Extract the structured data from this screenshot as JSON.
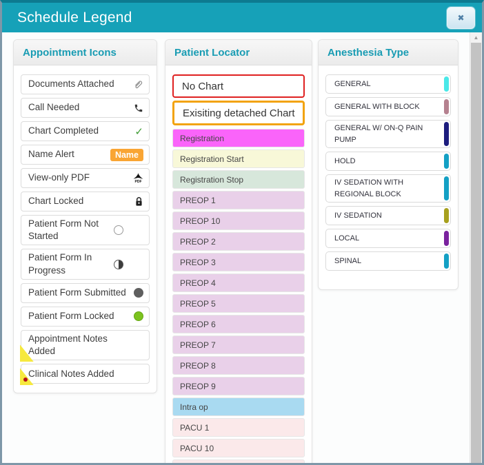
{
  "modal": {
    "title": "Schedule Legend",
    "close_glyph": "✖",
    "header_color": "#16a1b8",
    "accent_color": "#199cb3"
  },
  "ui": {
    "scroll_up_glyph": "▲"
  },
  "panels": {
    "appointment_icons": {
      "title": "Appointment Icons",
      "items": [
        {
          "label": "Documents Attached",
          "icon": "paperclip-icon"
        },
        {
          "label": "Call Needed",
          "icon": "phone-icon"
        },
        {
          "label": "Chart Completed",
          "icon": "check-icon"
        },
        {
          "label": "Name Alert",
          "icon": "name-badge",
          "badge_text": "Name",
          "badge_color": "#f9a534"
        },
        {
          "label": "View-only PDF",
          "icon": "pdf-icon",
          "pdf_text": "PDF"
        },
        {
          "label": "Chart Locked",
          "icon": "lock-icon"
        },
        {
          "label": "Patient Form Not Started",
          "icon": "circle-empty-icon",
          "two_line": true
        },
        {
          "label": "Patient Form In Progress",
          "icon": "circle-half-icon",
          "two_line": true
        },
        {
          "label": "Patient Form Submitted",
          "icon": "circle-filled-icon"
        },
        {
          "label": "Patient Form Locked",
          "icon": "circle-green-icon",
          "circle_color": "#7cc31f"
        },
        {
          "label": "Appointment Notes Added",
          "icon": "note-corner-icon",
          "two_line": true,
          "corner_color": "#f6e93e"
        },
        {
          "label": "Clinical Notes Added",
          "icon": "note-corner-dot-icon",
          "corner_color": "#f6e93e",
          "dot_color": "#b8121a"
        }
      ]
    },
    "patient_locator": {
      "title": "Patient Locator",
      "items": [
        {
          "label": "No Chart",
          "style": "outline1",
          "border_color": "#df2020",
          "bg": "#ffffff"
        },
        {
          "label": "Exisiting detached Chart",
          "style": "outline2",
          "border_color": "#f2a30c",
          "bg": "#ffffff"
        },
        {
          "label": "Registration",
          "bg": "#fa64fa"
        },
        {
          "label": "Registration Start",
          "bg": "#f8f8d8"
        },
        {
          "label": "Registration Stop",
          "bg": "#d7e7db"
        },
        {
          "label": "PREOP 1",
          "bg": "#e9d0e9"
        },
        {
          "label": "PREOP 10",
          "bg": "#e9d0e9"
        },
        {
          "label": "PREOP 2",
          "bg": "#e9d0e9"
        },
        {
          "label": "PREOP 3",
          "bg": "#e9d0e9"
        },
        {
          "label": "PREOP 4",
          "bg": "#e9d0e9"
        },
        {
          "label": "PREOP 5",
          "bg": "#e9d0e9"
        },
        {
          "label": "PREOP 6",
          "bg": "#e9d0e9"
        },
        {
          "label": "PREOP 7",
          "bg": "#e9d0e9"
        },
        {
          "label": "PREOP 8",
          "bg": "#e9d0e9"
        },
        {
          "label": "PREOP 9",
          "bg": "#e9d0e9"
        },
        {
          "label": "Intra op",
          "bg": "#a9daf1"
        },
        {
          "label": "PACU 1",
          "bg": "#fbe9ea"
        },
        {
          "label": "PACU 10",
          "bg": "#fbe9ea"
        },
        {
          "label": "",
          "bg": "#fbe9ea"
        }
      ]
    },
    "anesthesia_type": {
      "title": "Anesthesia Type",
      "items": [
        {
          "label": "GENERAL",
          "bar_color": "#4ae8e8"
        },
        {
          "label": "GENERAL WITH BLOCK",
          "bar_color": "#b5818f"
        },
        {
          "label": "GENERAL W/ ON-Q PAIN PUMP",
          "bar_color": "#1d1d7e"
        },
        {
          "label": "HOLD",
          "bar_color": "#14a0c4"
        },
        {
          "label": "IV SEDATION WITH REGIONAL BLOCK",
          "bar_color": "#14a0c4"
        },
        {
          "label": "IV SEDATION",
          "bar_color": "#a7a01e"
        },
        {
          "label": "LOCAL",
          "bar_color": "#7a229e"
        },
        {
          "label": "SPINAL",
          "bar_color": "#14a0c4"
        }
      ]
    }
  }
}
